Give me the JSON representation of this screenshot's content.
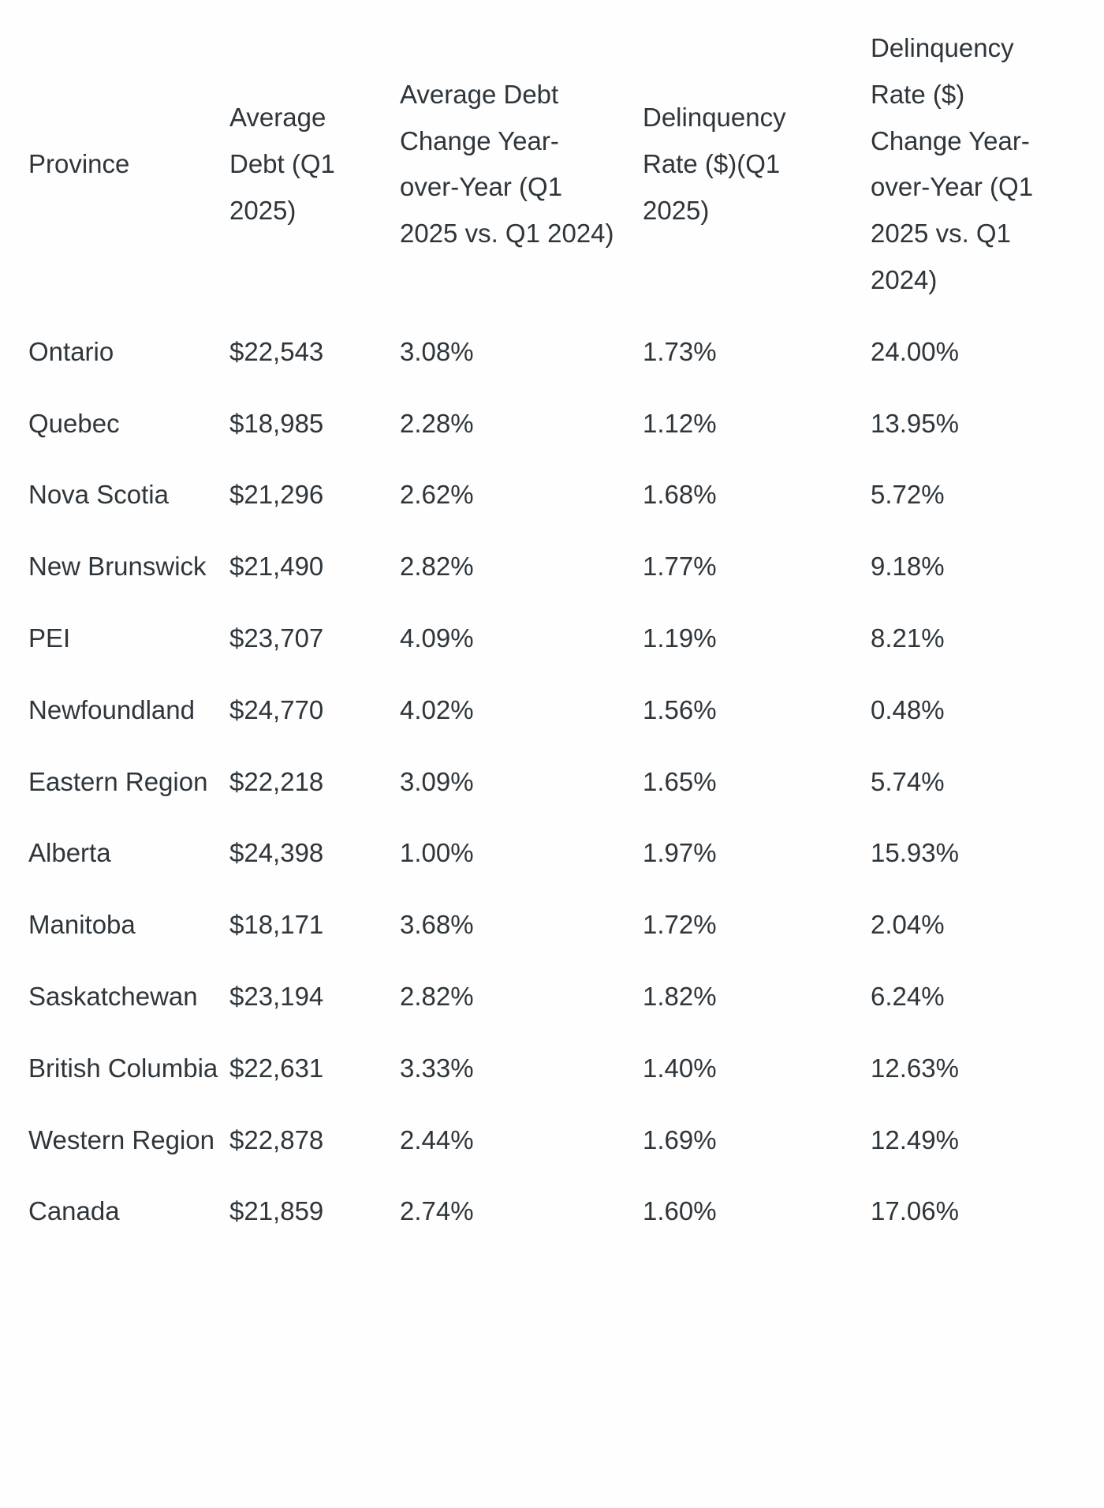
{
  "table": {
    "headers": [
      "Province",
      "Average Debt (Q1 2025)",
      "Average Debt Change Year-over-Year (Q1 2025 vs. Q1 2024)",
      "Delinquency Rate ($)(Q1 2025)",
      "Delinquency Rate ($) Change Year-over-Year (Q1 2025 vs. Q1 2024)"
    ],
    "rows": [
      [
        "Ontario",
        "$22,543",
        "3.08%",
        "1.73%",
        "24.00%"
      ],
      [
        "Quebec",
        "$18,985",
        "2.28%",
        "1.12%",
        "13.95%"
      ],
      [
        "Nova Scotia",
        "$21,296",
        "2.62%",
        "1.68%",
        "5.72%"
      ],
      [
        "New Brunswick",
        "$21,490",
        "2.82%",
        "1.77%",
        "9.18%"
      ],
      [
        "PEI",
        "$23,707",
        "4.09%",
        "1.19%",
        "8.21%"
      ],
      [
        "Newfoundland",
        "$24,770",
        "4.02%",
        "1.56%",
        "0.48%"
      ],
      [
        "Eastern Region",
        "$22,218",
        "3.09%",
        "1.65%",
        "5.74%"
      ],
      [
        "Alberta",
        "$24,398",
        "1.00%",
        "1.97%",
        "15.93%"
      ],
      [
        "Manitoba",
        "$18,171",
        "3.68%",
        "1.72%",
        "2.04%"
      ],
      [
        "Saskatchewan",
        "$23,194",
        "2.82%",
        "1.82%",
        "6.24%"
      ],
      [
        "British Columbia",
        "$22,631",
        "3.33%",
        "1.40%",
        "12.63%"
      ],
      [
        "Western Region",
        "$22,878",
        "2.44%",
        "1.69%",
        "12.49%"
      ],
      [
        "Canada",
        "$21,859",
        "2.74%",
        "1.60%",
        "17.06%"
      ]
    ]
  }
}
